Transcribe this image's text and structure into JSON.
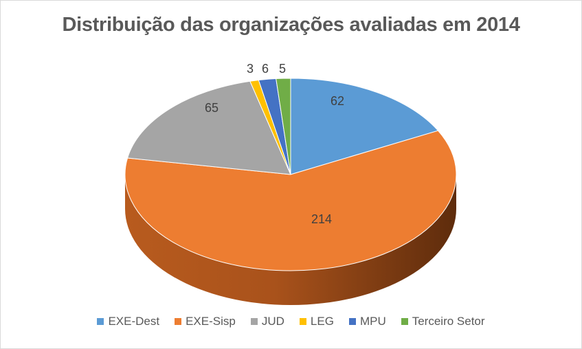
{
  "chart_data": {
    "type": "pie",
    "title": "Distribuição das organizações avaliadas em 2014",
    "categories": [
      "EXE-Dest",
      "EXE-Sisp",
      "JUD",
      "LEG",
      "MPU",
      "Terceiro Setor"
    ],
    "values": [
      62,
      214,
      65,
      3,
      6,
      5
    ],
    "colors": [
      "#5B9BD5",
      "#ED7D31",
      "#A5A5A5",
      "#FFC000",
      "#4472C4",
      "#70AD47"
    ],
    "style": "3d",
    "legend_position": "bottom",
    "data_labels": true
  }
}
